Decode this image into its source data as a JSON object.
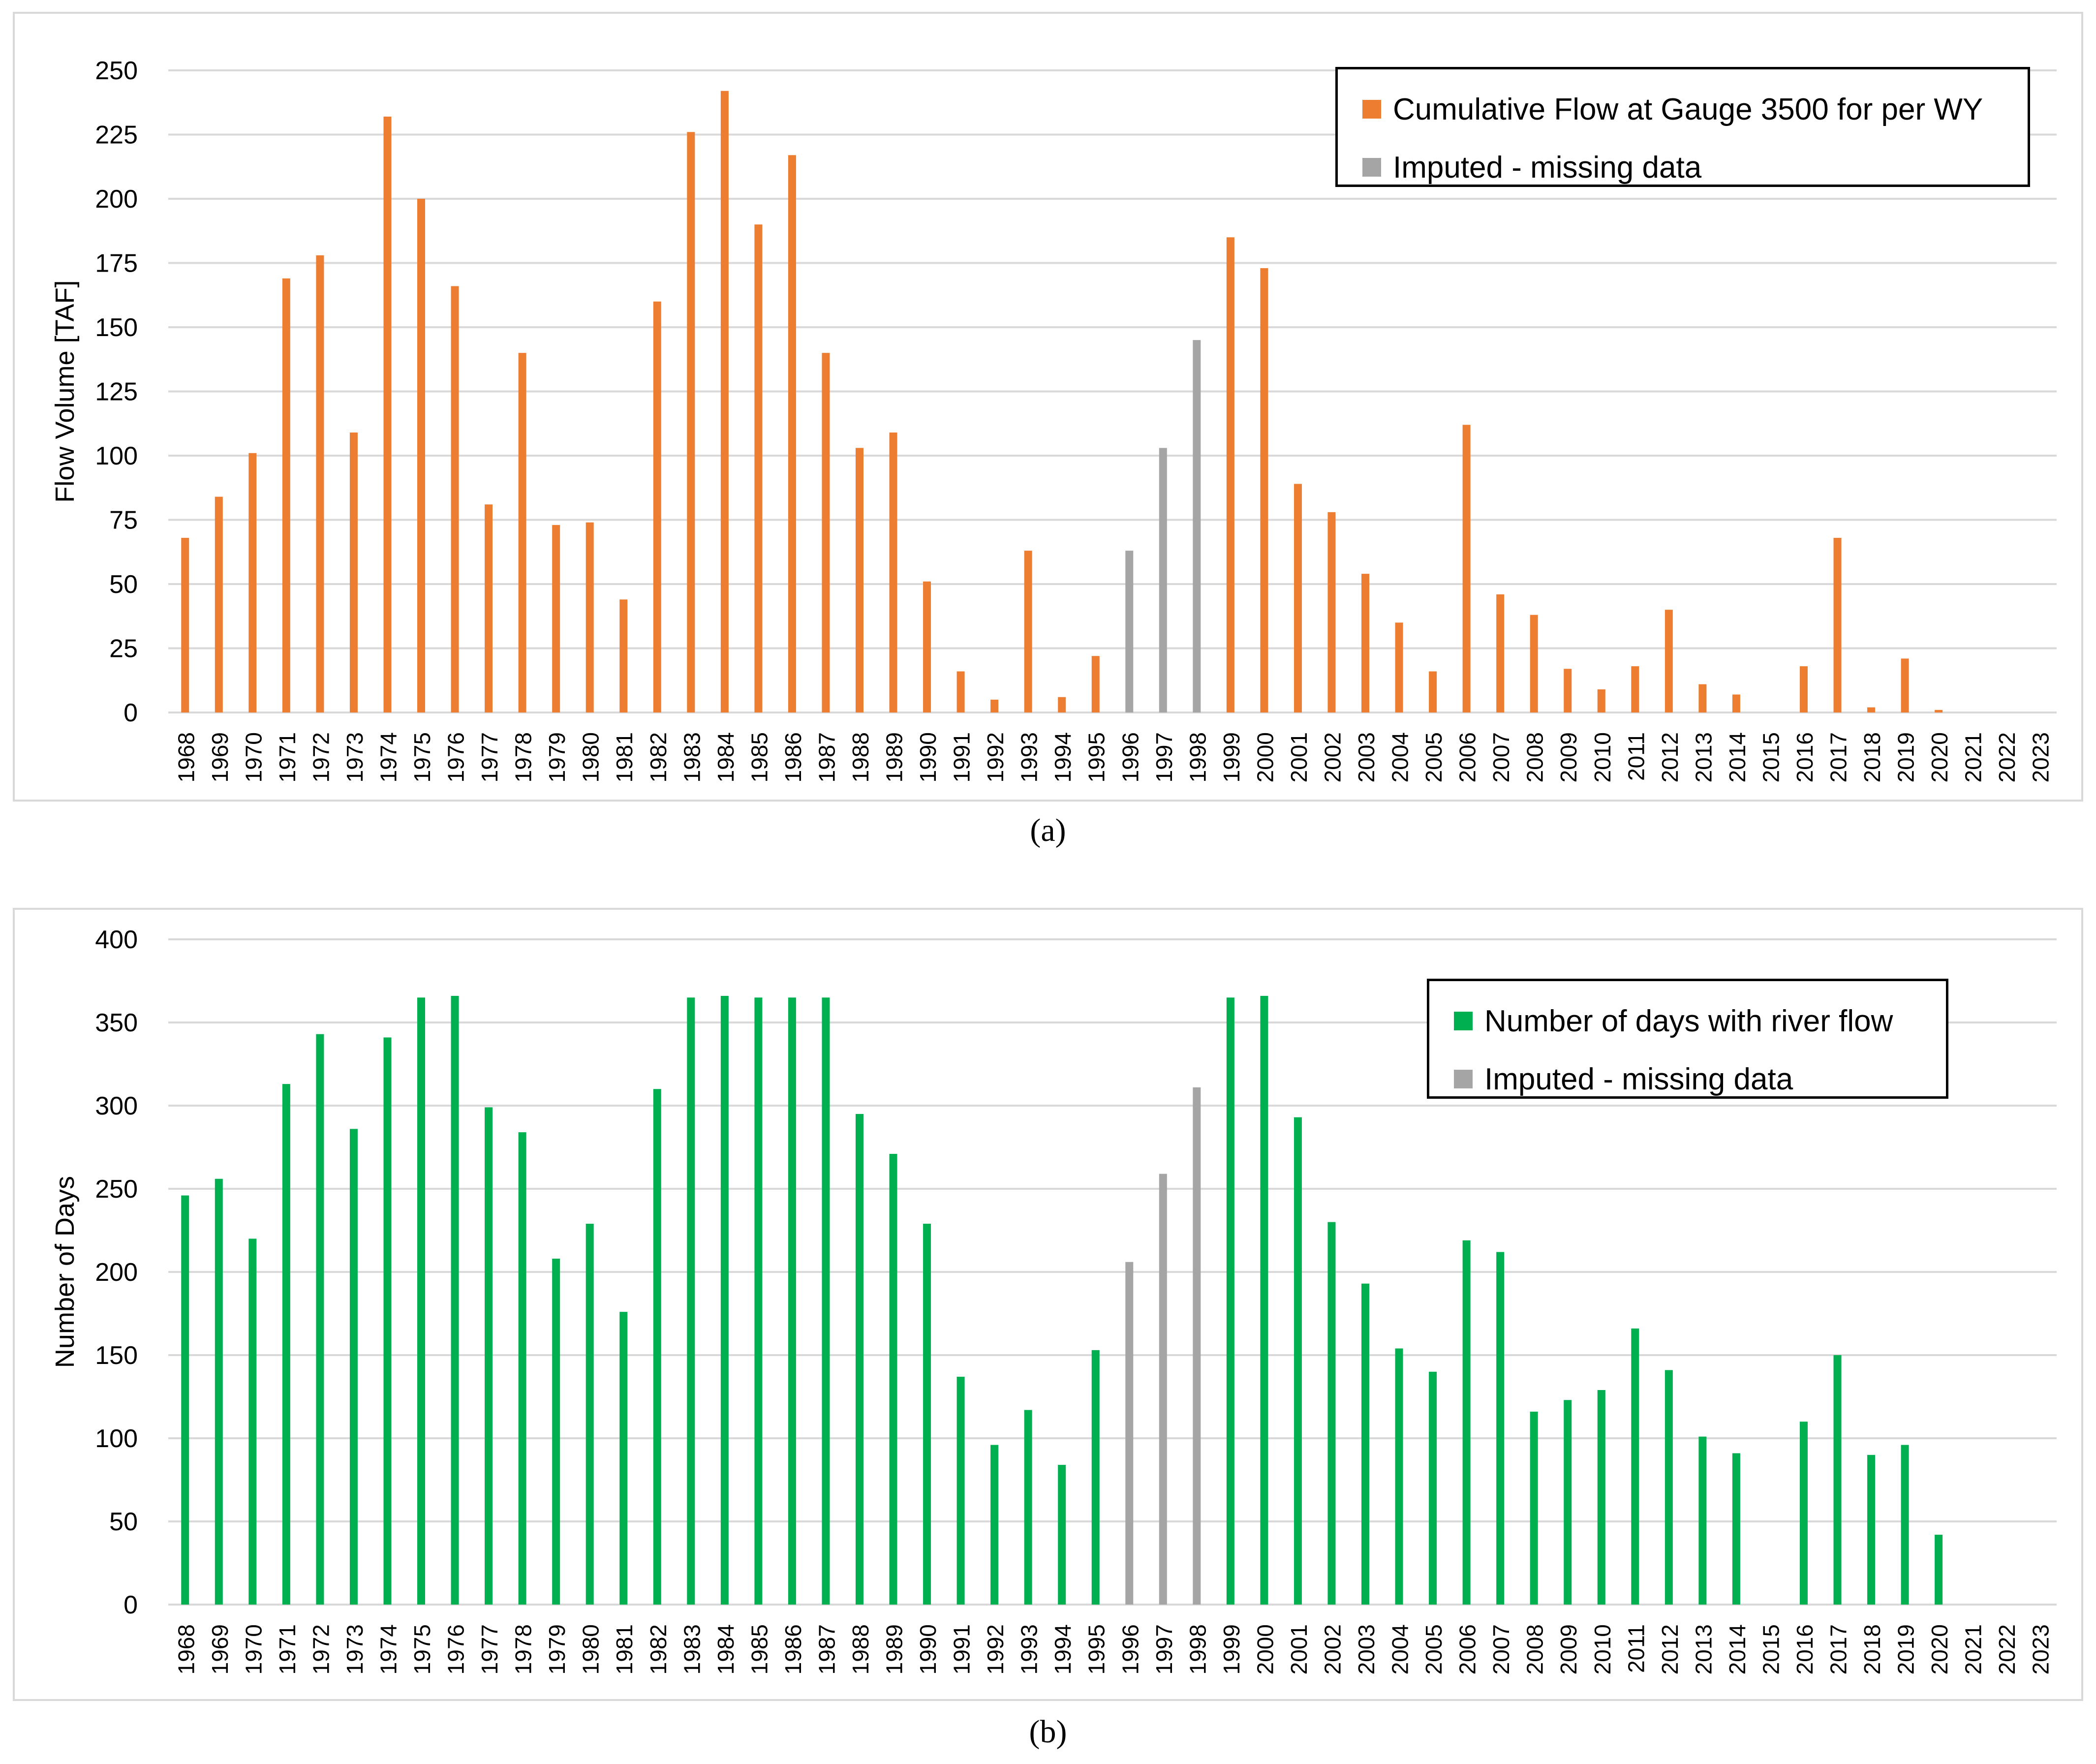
{
  "chart_data": [
    {
      "id": "a",
      "type": "bar",
      "caption": "(a)",
      "ylabel": "Flow Volume [TAF]",
      "xlabel": "",
      "ylim": [
        0,
        250
      ],
      "yticks": [
        0,
        25,
        50,
        75,
        100,
        125,
        150,
        175,
        200,
        225,
        250
      ],
      "grid": true,
      "legend_position": "top-right",
      "colors": {
        "observed": "#ED7D31",
        "imputed": "#A5A5A5"
      },
      "legend": [
        {
          "label": "Cumulative Flow at Gauge 3500 for per WY",
          "color": "#ED7D31"
        },
        {
          "label": "Imputed - missing data",
          "color": "#A5A5A5"
        }
      ],
      "categories": [
        "1968",
        "1969",
        "1970",
        "1971",
        "1972",
        "1973",
        "1974",
        "1975",
        "1976",
        "1977",
        "1978",
        "1979",
        "1980",
        "1981",
        "1982",
        "1983",
        "1984",
        "1985",
        "1986",
        "1987",
        "1988",
        "1989",
        "1990",
        "1991",
        "1992",
        "1993",
        "1994",
        "1995",
        "1996",
        "1997",
        "1998",
        "1999",
        "2000",
        "2001",
        "2002",
        "2003",
        "2004",
        "2005",
        "2006",
        "2007",
        "2008",
        "2009",
        "2010",
        "2011",
        "2012",
        "2013",
        "2014",
        "2015",
        "2016",
        "2017",
        "2018",
        "2019",
        "2020",
        "2021",
        "2022",
        "2023"
      ],
      "values": [
        68,
        84,
        101,
        169,
        178,
        109,
        232,
        200,
        166,
        81,
        140,
        73,
        74,
        44,
        160,
        226,
        242,
        190,
        217,
        140,
        103,
        109,
        51,
        16,
        5,
        63,
        6,
        22,
        63,
        103,
        145,
        185,
        173,
        89,
        78,
        54,
        35,
        16,
        112,
        46,
        38,
        17,
        9,
        18,
        40,
        11,
        7,
        0,
        18,
        68,
        2,
        21,
        1,
        0,
        0,
        0
      ],
      "imputed": [
        "1996",
        "1997",
        "1998"
      ]
    },
    {
      "id": "b",
      "type": "bar",
      "caption": "(b)",
      "ylabel": "Number of Days",
      "xlabel": "",
      "ylim": [
        0,
        400
      ],
      "yticks": [
        0,
        50,
        100,
        150,
        200,
        250,
        300,
        350,
        400
      ],
      "grid": true,
      "legend_position": "top-right",
      "colors": {
        "observed": "#00B050",
        "imputed": "#A5A5A5"
      },
      "legend": [
        {
          "label": "Number of days with river flow",
          "color": "#00B050"
        },
        {
          "label": "Imputed - missing data",
          "color": "#A5A5A5"
        }
      ],
      "categories": [
        "1968",
        "1969",
        "1970",
        "1971",
        "1972",
        "1973",
        "1974",
        "1975",
        "1976",
        "1977",
        "1978",
        "1979",
        "1980",
        "1981",
        "1982",
        "1983",
        "1984",
        "1985",
        "1986",
        "1987",
        "1988",
        "1989",
        "1990",
        "1991",
        "1992",
        "1993",
        "1994",
        "1995",
        "1996",
        "1997",
        "1998",
        "1999",
        "2000",
        "2001",
        "2002",
        "2003",
        "2004",
        "2005",
        "2006",
        "2007",
        "2008",
        "2009",
        "2010",
        "2011",
        "2012",
        "2013",
        "2014",
        "2015",
        "2016",
        "2017",
        "2018",
        "2019",
        "2020",
        "2021",
        "2022",
        "2023"
      ],
      "values": [
        246,
        256,
        220,
        313,
        343,
        286,
        341,
        365,
        366,
        299,
        284,
        208,
        229,
        176,
        310,
        365,
        366,
        365,
        365,
        365,
        295,
        271,
        229,
        137,
        96,
        117,
        84,
        153,
        206,
        259,
        311,
        365,
        366,
        293,
        230,
        193,
        154,
        140,
        219,
        212,
        116,
        123,
        129,
        166,
        141,
        101,
        91,
        0,
        110,
        150,
        90,
        96,
        42,
        0,
        0,
        0
      ],
      "imputed": [
        "1996",
        "1997",
        "1998"
      ]
    }
  ]
}
